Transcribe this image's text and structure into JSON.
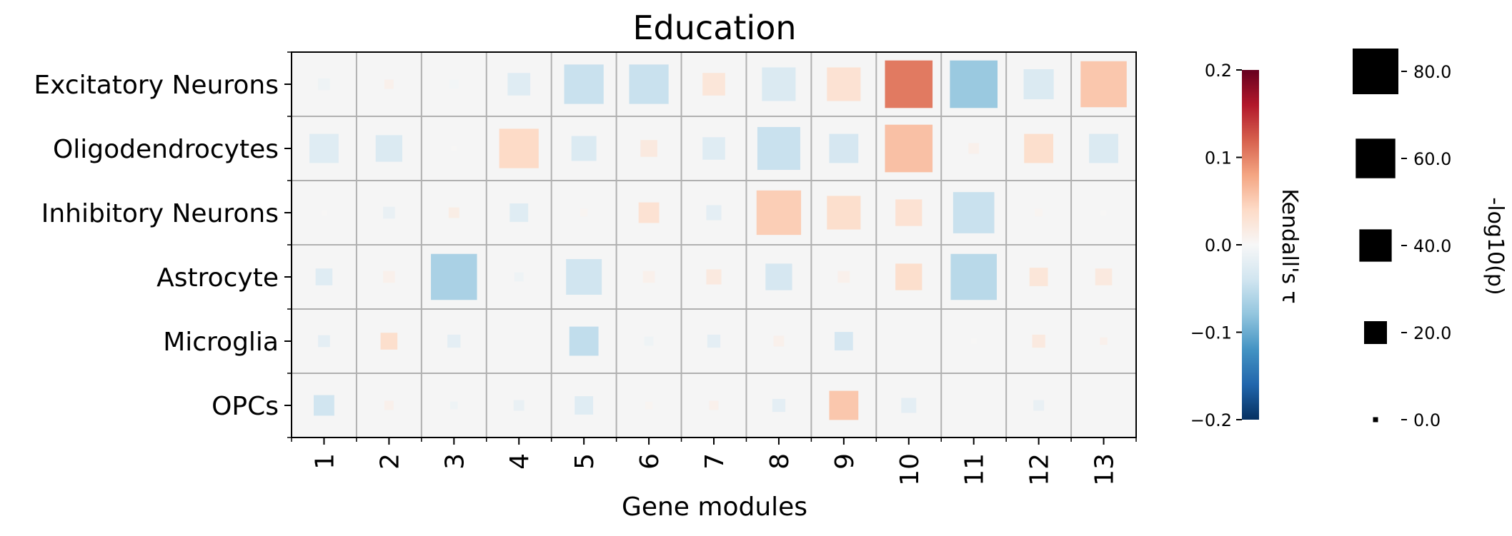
{
  "chart_data": {
    "type": "heatmap",
    "title": "Education",
    "xlabel": "Gene modules",
    "ylabel": "",
    "rows": [
      "Excitatory Neurons",
      "Oligodendrocytes",
      "Inhibitory Neurons",
      "Astrocyte",
      "Microglia",
      "OPCs"
    ],
    "columns": [
      "1",
      "2",
      "3",
      "4",
      "5",
      "6",
      "7",
      "8",
      "9",
      "10",
      "11",
      "12",
      "13"
    ],
    "tau": [
      [
        -0.01,
        0.01,
        -0.005,
        -0.025,
        -0.045,
        -0.045,
        0.025,
        -0.03,
        0.03,
        0.105,
        -0.075,
        -0.03,
        0.055
      ],
      [
        -0.025,
        -0.03,
        0.002,
        0.04,
        -0.03,
        0.02,
        -0.025,
        -0.045,
        -0.035,
        0.06,
        0.01,
        0.035,
        -0.03
      ],
      [
        0.002,
        -0.015,
        0.015,
        -0.025,
        0.005,
        0.03,
        -0.02,
        0.05,
        0.035,
        0.03,
        -0.045,
        0.005,
        0.002
      ],
      [
        -0.025,
        0.01,
        -0.065,
        -0.01,
        -0.04,
        0.01,
        0.02,
        -0.035,
        0.01,
        0.035,
        -0.055,
        0.025,
        0.02
      ],
      [
        -0.02,
        0.035,
        -0.02,
        null,
        -0.05,
        -0.01,
        -0.02,
        0.01,
        -0.035,
        null,
        0.002,
        0.02,
        0.01
      ],
      [
        -0.04,
        0.01,
        -0.01,
        -0.015,
        -0.025,
        0.005,
        0.01,
        -0.02,
        0.055,
        -0.02,
        null,
        -0.015,
        null
      ]
    ],
    "neg_log10_p": [
      [
        5,
        3,
        3,
        18,
        55,
        55,
        18,
        40,
        40,
        80,
        80,
        32,
        75
      ],
      [
        30,
        25,
        1,
        55,
        22,
        10,
        18,
        65,
        30,
        80,
        4,
        30,
        30
      ],
      [
        1,
        5,
        4,
        12,
        2,
        15,
        8,
        70,
        40,
        25,
        60,
        2,
        1
      ],
      [
        10,
        5,
        75,
        3,
        45,
        5,
        8,
        25,
        5,
        25,
        75,
        12,
        10
      ],
      [
        5,
        10,
        6,
        null,
        30,
        3,
        6,
        4,
        12,
        null,
        1,
        6,
        2
      ],
      [
        15,
        3,
        2,
        4,
        12,
        2,
        3,
        6,
        30,
        8,
        null,
        4,
        null
      ]
    ],
    "colorbar": {
      "label": "Kendall's τ",
      "range": [
        -0.2,
        0.2
      ],
      "ticks": [
        "0.2",
        "0.1",
        "0.0",
        "−0.1",
        "−0.2"
      ],
      "tick_values": [
        0.2,
        0.1,
        0.0,
        -0.1,
        -0.2
      ],
      "colormap": "RdBu_r",
      "stops": [
        "#053061",
        "#2166ac",
        "#4393c3",
        "#92c5de",
        "#d1e5f0",
        "#f7f7f7",
        "#fddbc7",
        "#f4a582",
        "#d6604d",
        "#b2182b",
        "#67001f"
      ]
    },
    "size_legend": {
      "label": "-log10(p)",
      "ticks": [
        "80.0",
        "60.0",
        "40.0",
        "20.0",
        "0.0"
      ],
      "values": [
        80,
        60,
        40,
        20,
        0
      ]
    },
    "grid": true,
    "cell_background": "#f5f5f5",
    "grid_color": "#b0b0b0",
    "marker_color_legend": "#000000"
  }
}
